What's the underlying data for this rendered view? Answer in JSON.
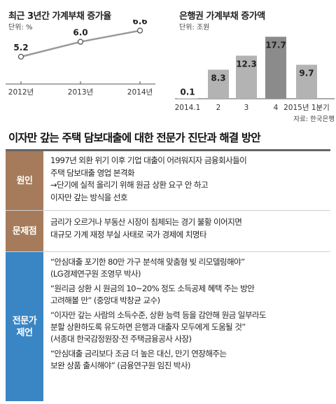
{
  "chart_data": [
    {
      "type": "line",
      "title": "최근 3년간 가계부채 증가율",
      "unit": "단위: %",
      "categories": [
        "2012년",
        "2013년",
        "2014년"
      ],
      "values": [
        5.2,
        6.0,
        6.6
      ],
      "value_labels": [
        "5.2",
        "6.0",
        "6.6"
      ],
      "color": "#999999"
    },
    {
      "type": "bar",
      "title": "은행권 가계부채 증가액",
      "unit": "단위: 조원",
      "categories": [
        "2014.1",
        "2",
        "3",
        "4",
        "2015년 1분기"
      ],
      "values": [
        0.1,
        8.3,
        12.3,
        17.7,
        9.7
      ],
      "value_labels": [
        "0.1",
        "8.3",
        "12.3",
        "17.7",
        "9.7"
      ],
      "bar_color": "#b3b3b3",
      "highlight_color": "#8b8b8b",
      "highlight_index": 3,
      "source": "자료: 한국은행"
    }
  ],
  "section": {
    "title": "이자만 갚는 주택 담보대출에 대한 전문가 진단과 해결 방안"
  },
  "rows": {
    "cause": {
      "label": "원인",
      "lines": [
        "1997년 외환 위기 이후 기업 대출이 어려워지자 금융회사들이",
        "주택 담보대출 영업 본격화",
        "→단기에 실적 올리기 위해 원금 상환 요구 안 하고",
        "이자만 갚는 방식을 선호"
      ]
    },
    "problem": {
      "label": "문제점",
      "lines": [
        "금리가 오르거나 부동산 시장이 침체되는 경기 불황 이어지면",
        "대규모 가계 재정 부실 사태로 국가 경제에 치명타"
      ]
    },
    "expert": {
      "label_line1": "전문가",
      "label_line2": "제언",
      "quotes": [
        [
          "“안심대출 포기한 80만 가구 분석해 맞춤형 빚 리모델링해야”",
          "(LG경제연구원 조영무 박사)"
        ],
        [
          "“원리금 상환 시 원금의 10~20% 정도 소득공제 혜택 주는 방안",
          "고려해볼 만” (중앙대 박창균 교수)"
        ],
        [
          "“이자만 갚는 사람의 소득수준, 상환 능력 등을 감안해 원금 일부라도",
          "분할 상환하도록 유도하면 은행과 대출자 모두에게 도움될 것”",
          "(서종대 한국감정원장·전 주택금융공사 사장)"
        ],
        [
          "“안심대출 금리보다 조금 더 높은 대신, 만기 연장해주는",
          "보완 상품 출시해야” (금융연구원 임진 박사)"
        ]
      ]
    }
  },
  "colors": {
    "label_brown": "#a57b5b",
    "label_blue": "#3a86c4"
  }
}
